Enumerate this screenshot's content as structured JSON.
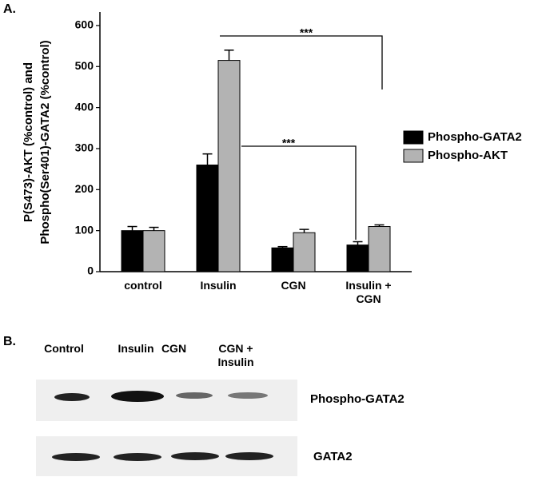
{
  "panel_labels": [
    "A.",
    "B."
  ],
  "chart_data": {
    "type": "bar",
    "ylabel": [
      "P(S473)-AKT (%control) and",
      "Phospho(Ser401)-GATA2 (%control)"
    ],
    "categories": [
      "control",
      "Insulin",
      "CGN",
      "Insulin + CGN"
    ],
    "series": [
      {
        "name": "Phospho-GATA2",
        "color": "#000000",
        "values": [
          100,
          260,
          58,
          65
        ],
        "errors": [
          10,
          27,
          3,
          8
        ]
      },
      {
        "name": "Phospho-AKT",
        "color": "#b3b3b3",
        "values": [
          100,
          515,
          95,
          110
        ],
        "errors": [
          8,
          25,
          8,
          4
        ]
      }
    ],
    "ylim": [
      0,
      633
    ],
    "yticks": [
      0,
      100,
      200,
      300,
      400,
      500,
      600
    ],
    "annotations": [
      "***",
      "***"
    ]
  },
  "blot": {
    "lanes": [
      "Control",
      "Insulin",
      "CGN",
      "CGN + Insulin"
    ],
    "rows": [
      "Phospho-GATA2",
      "GATA2"
    ]
  }
}
